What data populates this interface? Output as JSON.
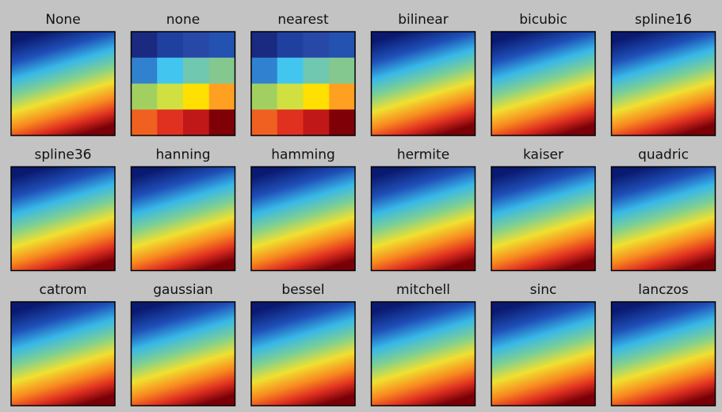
{
  "panels": [
    {
      "title": "None"
    },
    {
      "title": "none"
    },
    {
      "title": "nearest"
    },
    {
      "title": "bilinear"
    },
    {
      "title": "bicubic"
    },
    {
      "title": "spline16"
    },
    {
      "title": "spline36"
    },
    {
      "title": "hanning"
    },
    {
      "title": "hamming"
    },
    {
      "title": "hermite"
    },
    {
      "title": "kaiser"
    },
    {
      "title": "quadric"
    },
    {
      "title": "catrom"
    },
    {
      "title": "gaussian"
    },
    {
      "title": "bessel"
    },
    {
      "title": "mitchell"
    },
    {
      "title": "sinc"
    },
    {
      "title": "lanczos"
    }
  ]
}
